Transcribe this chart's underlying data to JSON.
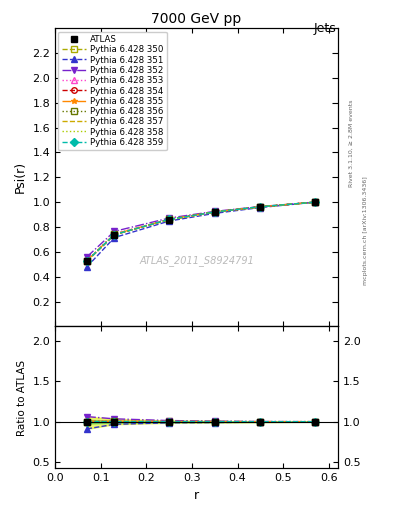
{
  "title": "7000 GeV pp",
  "title_right": "Jets",
  "xlabel": "r",
  "ylabel_main": "Psi(r)",
  "ylabel_ratio": "Ratio to ATLAS",
  "watermark": "ATLAS_2011_S8924791",
  "right_label_top": "Rivet 3.1.10, ≥ 2.8M events",
  "right_label_bottom": "mcplots.cern.ch [arXiv:1306.3436]",
  "x_data": [
    0.07,
    0.13,
    0.25,
    0.35,
    0.45,
    0.57
  ],
  "atlas_y": [
    0.527,
    0.739,
    0.86,
    0.92,
    0.963,
    1.0
  ],
  "atlas_yerr": [
    0.012,
    0.01,
    0.007,
    0.006,
    0.004,
    0.003
  ],
  "series": [
    {
      "label": "Pythia 6.428 350",
      "color": "#aaaa00",
      "linestyle": "--",
      "marker": "s",
      "markerfacecolor": "none",
      "y": [
        0.527,
        0.74,
        0.862,
        0.921,
        0.963,
        1.0
      ]
    },
    {
      "label": "Pythia 6.428 351",
      "color": "#3333cc",
      "linestyle": "--",
      "marker": "^",
      "markerfacecolor": "#3333cc",
      "y": [
        0.48,
        0.715,
        0.848,
        0.91,
        0.957,
        1.0
      ]
    },
    {
      "label": "Pythia 6.428 352",
      "color": "#7722cc",
      "linestyle": "-.",
      "marker": "v",
      "markerfacecolor": "#7722cc",
      "y": [
        0.56,
        0.765,
        0.872,
        0.926,
        0.965,
        1.0
      ]
    },
    {
      "label": "Pythia 6.428 353",
      "color": "#ff44cc",
      "linestyle": ":",
      "marker": "^",
      "markerfacecolor": "none",
      "y": [
        0.53,
        0.745,
        0.863,
        0.922,
        0.963,
        1.0
      ]
    },
    {
      "label": "Pythia 6.428 354",
      "color": "#cc0000",
      "linestyle": "--",
      "marker": "o",
      "markerfacecolor": "none",
      "y": [
        0.525,
        0.738,
        0.86,
        0.92,
        0.962,
        1.0
      ]
    },
    {
      "label": "Pythia 6.428 355",
      "color": "#ff8800",
      "linestyle": "-.",
      "marker": "*",
      "markerfacecolor": "#ff8800",
      "y": [
        0.53,
        0.742,
        0.862,
        0.922,
        0.963,
        1.0
      ]
    },
    {
      "label": "Pythia 6.428 356",
      "color": "#667700",
      "linestyle": ":",
      "marker": "s",
      "markerfacecolor": "none",
      "y": [
        0.528,
        0.741,
        0.861,
        0.921,
        0.963,
        1.0
      ]
    },
    {
      "label": "Pythia 6.428 357",
      "color": "#ccaa00",
      "linestyle": "--",
      "marker": null,
      "markerfacecolor": "none",
      "y": [
        0.525,
        0.738,
        0.858,
        0.919,
        0.962,
        1.0
      ]
    },
    {
      "label": "Pythia 6.428 358",
      "color": "#aacc00",
      "linestyle": ":",
      "marker": null,
      "markerfacecolor": "none",
      "y": [
        0.527,
        0.74,
        0.86,
        0.92,
        0.963,
        1.0
      ]
    },
    {
      "label": "Pythia 6.428 359",
      "color": "#00bbaa",
      "linestyle": "--",
      "marker": "D",
      "markerfacecolor": "#00bbaa",
      "y": [
        0.527,
        0.739,
        0.861,
        0.921,
        0.963,
        1.0
      ]
    }
  ],
  "xlim": [
    0.0,
    0.62
  ],
  "ylim_main": [
    0.0,
    2.4
  ],
  "ylim_ratio": [
    0.42,
    2.18
  ],
  "yticks_main": [
    0.2,
    0.4,
    0.6,
    0.8,
    1.0,
    1.2,
    1.4,
    1.6,
    1.8,
    2.0,
    2.2
  ],
  "yticks_ratio": [
    0.5,
    1.0,
    1.5,
    2.0
  ],
  "background_color": "#ffffff"
}
